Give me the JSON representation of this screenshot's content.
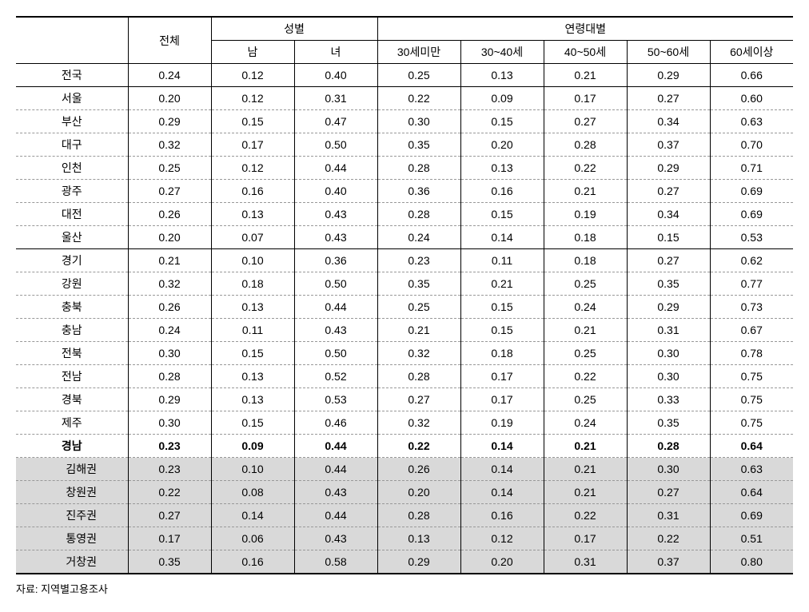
{
  "headers": {
    "row_label": "",
    "total": "전체",
    "gender_group": "성별",
    "gender_male": "남",
    "gender_female": "녀",
    "age_group": "연령대별",
    "age_under30": "30세미만",
    "age_30_40": "30~40세",
    "age_40_50": "40~50세",
    "age_50_60": "50~60세",
    "age_over60": "60세이상"
  },
  "rows": [
    {
      "label": "전국",
      "values": [
        "0.24",
        "0.12",
        "0.40",
        "0.25",
        "0.13",
        "0.21",
        "0.29",
        "0.66"
      ],
      "style": "section-end"
    },
    {
      "label": "서울",
      "values": [
        "0.20",
        "0.12",
        "0.31",
        "0.22",
        "0.09",
        "0.17",
        "0.27",
        "0.60"
      ],
      "style": "dashed"
    },
    {
      "label": "부산",
      "values": [
        "0.29",
        "0.15",
        "0.47",
        "0.30",
        "0.15",
        "0.27",
        "0.34",
        "0.63"
      ],
      "style": "dashed"
    },
    {
      "label": "대구",
      "values": [
        "0.32",
        "0.17",
        "0.50",
        "0.35",
        "0.20",
        "0.28",
        "0.37",
        "0.70"
      ],
      "style": "dashed"
    },
    {
      "label": "인천",
      "values": [
        "0.25",
        "0.12",
        "0.44",
        "0.28",
        "0.13",
        "0.22",
        "0.29",
        "0.71"
      ],
      "style": "dashed"
    },
    {
      "label": "광주",
      "values": [
        "0.27",
        "0.16",
        "0.40",
        "0.36",
        "0.16",
        "0.21",
        "0.27",
        "0.69"
      ],
      "style": "dashed"
    },
    {
      "label": "대전",
      "values": [
        "0.26",
        "0.13",
        "0.43",
        "0.28",
        "0.15",
        "0.19",
        "0.34",
        "0.69"
      ],
      "style": "dashed"
    },
    {
      "label": "울산",
      "values": [
        "0.20",
        "0.07",
        "0.43",
        "0.24",
        "0.14",
        "0.18",
        "0.15",
        "0.53"
      ],
      "style": "section-end"
    },
    {
      "label": "경기",
      "values": [
        "0.21",
        "0.10",
        "0.36",
        "0.23",
        "0.11",
        "0.18",
        "0.27",
        "0.62"
      ],
      "style": "dashed"
    },
    {
      "label": "강원",
      "values": [
        "0.32",
        "0.18",
        "0.50",
        "0.35",
        "0.21",
        "0.25",
        "0.35",
        "0.77"
      ],
      "style": "dashed"
    },
    {
      "label": "충북",
      "values": [
        "0.26",
        "0.13",
        "0.44",
        "0.25",
        "0.15",
        "0.24",
        "0.29",
        "0.73"
      ],
      "style": "dashed"
    },
    {
      "label": "충남",
      "values": [
        "0.24",
        "0.11",
        "0.43",
        "0.21",
        "0.15",
        "0.21",
        "0.31",
        "0.67"
      ],
      "style": "dashed"
    },
    {
      "label": "전북",
      "values": [
        "0.30",
        "0.15",
        "0.50",
        "0.32",
        "0.18",
        "0.25",
        "0.30",
        "0.78"
      ],
      "style": "dashed"
    },
    {
      "label": "전남",
      "values": [
        "0.28",
        "0.13",
        "0.52",
        "0.28",
        "0.17",
        "0.22",
        "0.30",
        "0.75"
      ],
      "style": "dashed"
    },
    {
      "label": "경북",
      "values": [
        "0.29",
        "0.13",
        "0.53",
        "0.27",
        "0.17",
        "0.25",
        "0.33",
        "0.75"
      ],
      "style": "dashed"
    },
    {
      "label": "제주",
      "values": [
        "0.30",
        "0.15",
        "0.46",
        "0.32",
        "0.19",
        "0.24",
        "0.35",
        "0.75"
      ],
      "style": "dashed"
    },
    {
      "label": "경남",
      "values": [
        "0.23",
        "0.09",
        "0.44",
        "0.22",
        "0.14",
        "0.21",
        "0.28",
        "0.64"
      ],
      "style": "bold-dashed"
    },
    {
      "label": "김해권",
      "values": [
        "0.23",
        "0.10",
        "0.44",
        "0.26",
        "0.14",
        "0.21",
        "0.30",
        "0.63"
      ],
      "style": "shaded-dashed",
      "indent": true
    },
    {
      "label": "창원권",
      "values": [
        "0.22",
        "0.08",
        "0.43",
        "0.20",
        "0.14",
        "0.21",
        "0.27",
        "0.64"
      ],
      "style": "shaded-dashed",
      "indent": true
    },
    {
      "label": "진주권",
      "values": [
        "0.27",
        "0.14",
        "0.44",
        "0.28",
        "0.16",
        "0.22",
        "0.31",
        "0.69"
      ],
      "style": "shaded-dashed",
      "indent": true
    },
    {
      "label": "통영권",
      "values": [
        "0.17",
        "0.06",
        "0.43",
        "0.13",
        "0.12",
        "0.17",
        "0.22",
        "0.51"
      ],
      "style": "shaded-dashed",
      "indent": true
    },
    {
      "label": "거창권",
      "values": [
        "0.35",
        "0.16",
        "0.58",
        "0.29",
        "0.20",
        "0.31",
        "0.37",
        "0.80"
      ],
      "style": "shaded-end",
      "indent": true
    }
  ],
  "note": "자료: 지역별고용조사",
  "styling": {
    "text_color": "#000000",
    "background_color": "#ffffff",
    "shaded_color": "#d9d9d9",
    "border_color": "#000000",
    "dashed_border_color": "#999999",
    "font_size_body": 14,
    "font_size_note": 13,
    "font_family": "Malgun Gothic"
  }
}
